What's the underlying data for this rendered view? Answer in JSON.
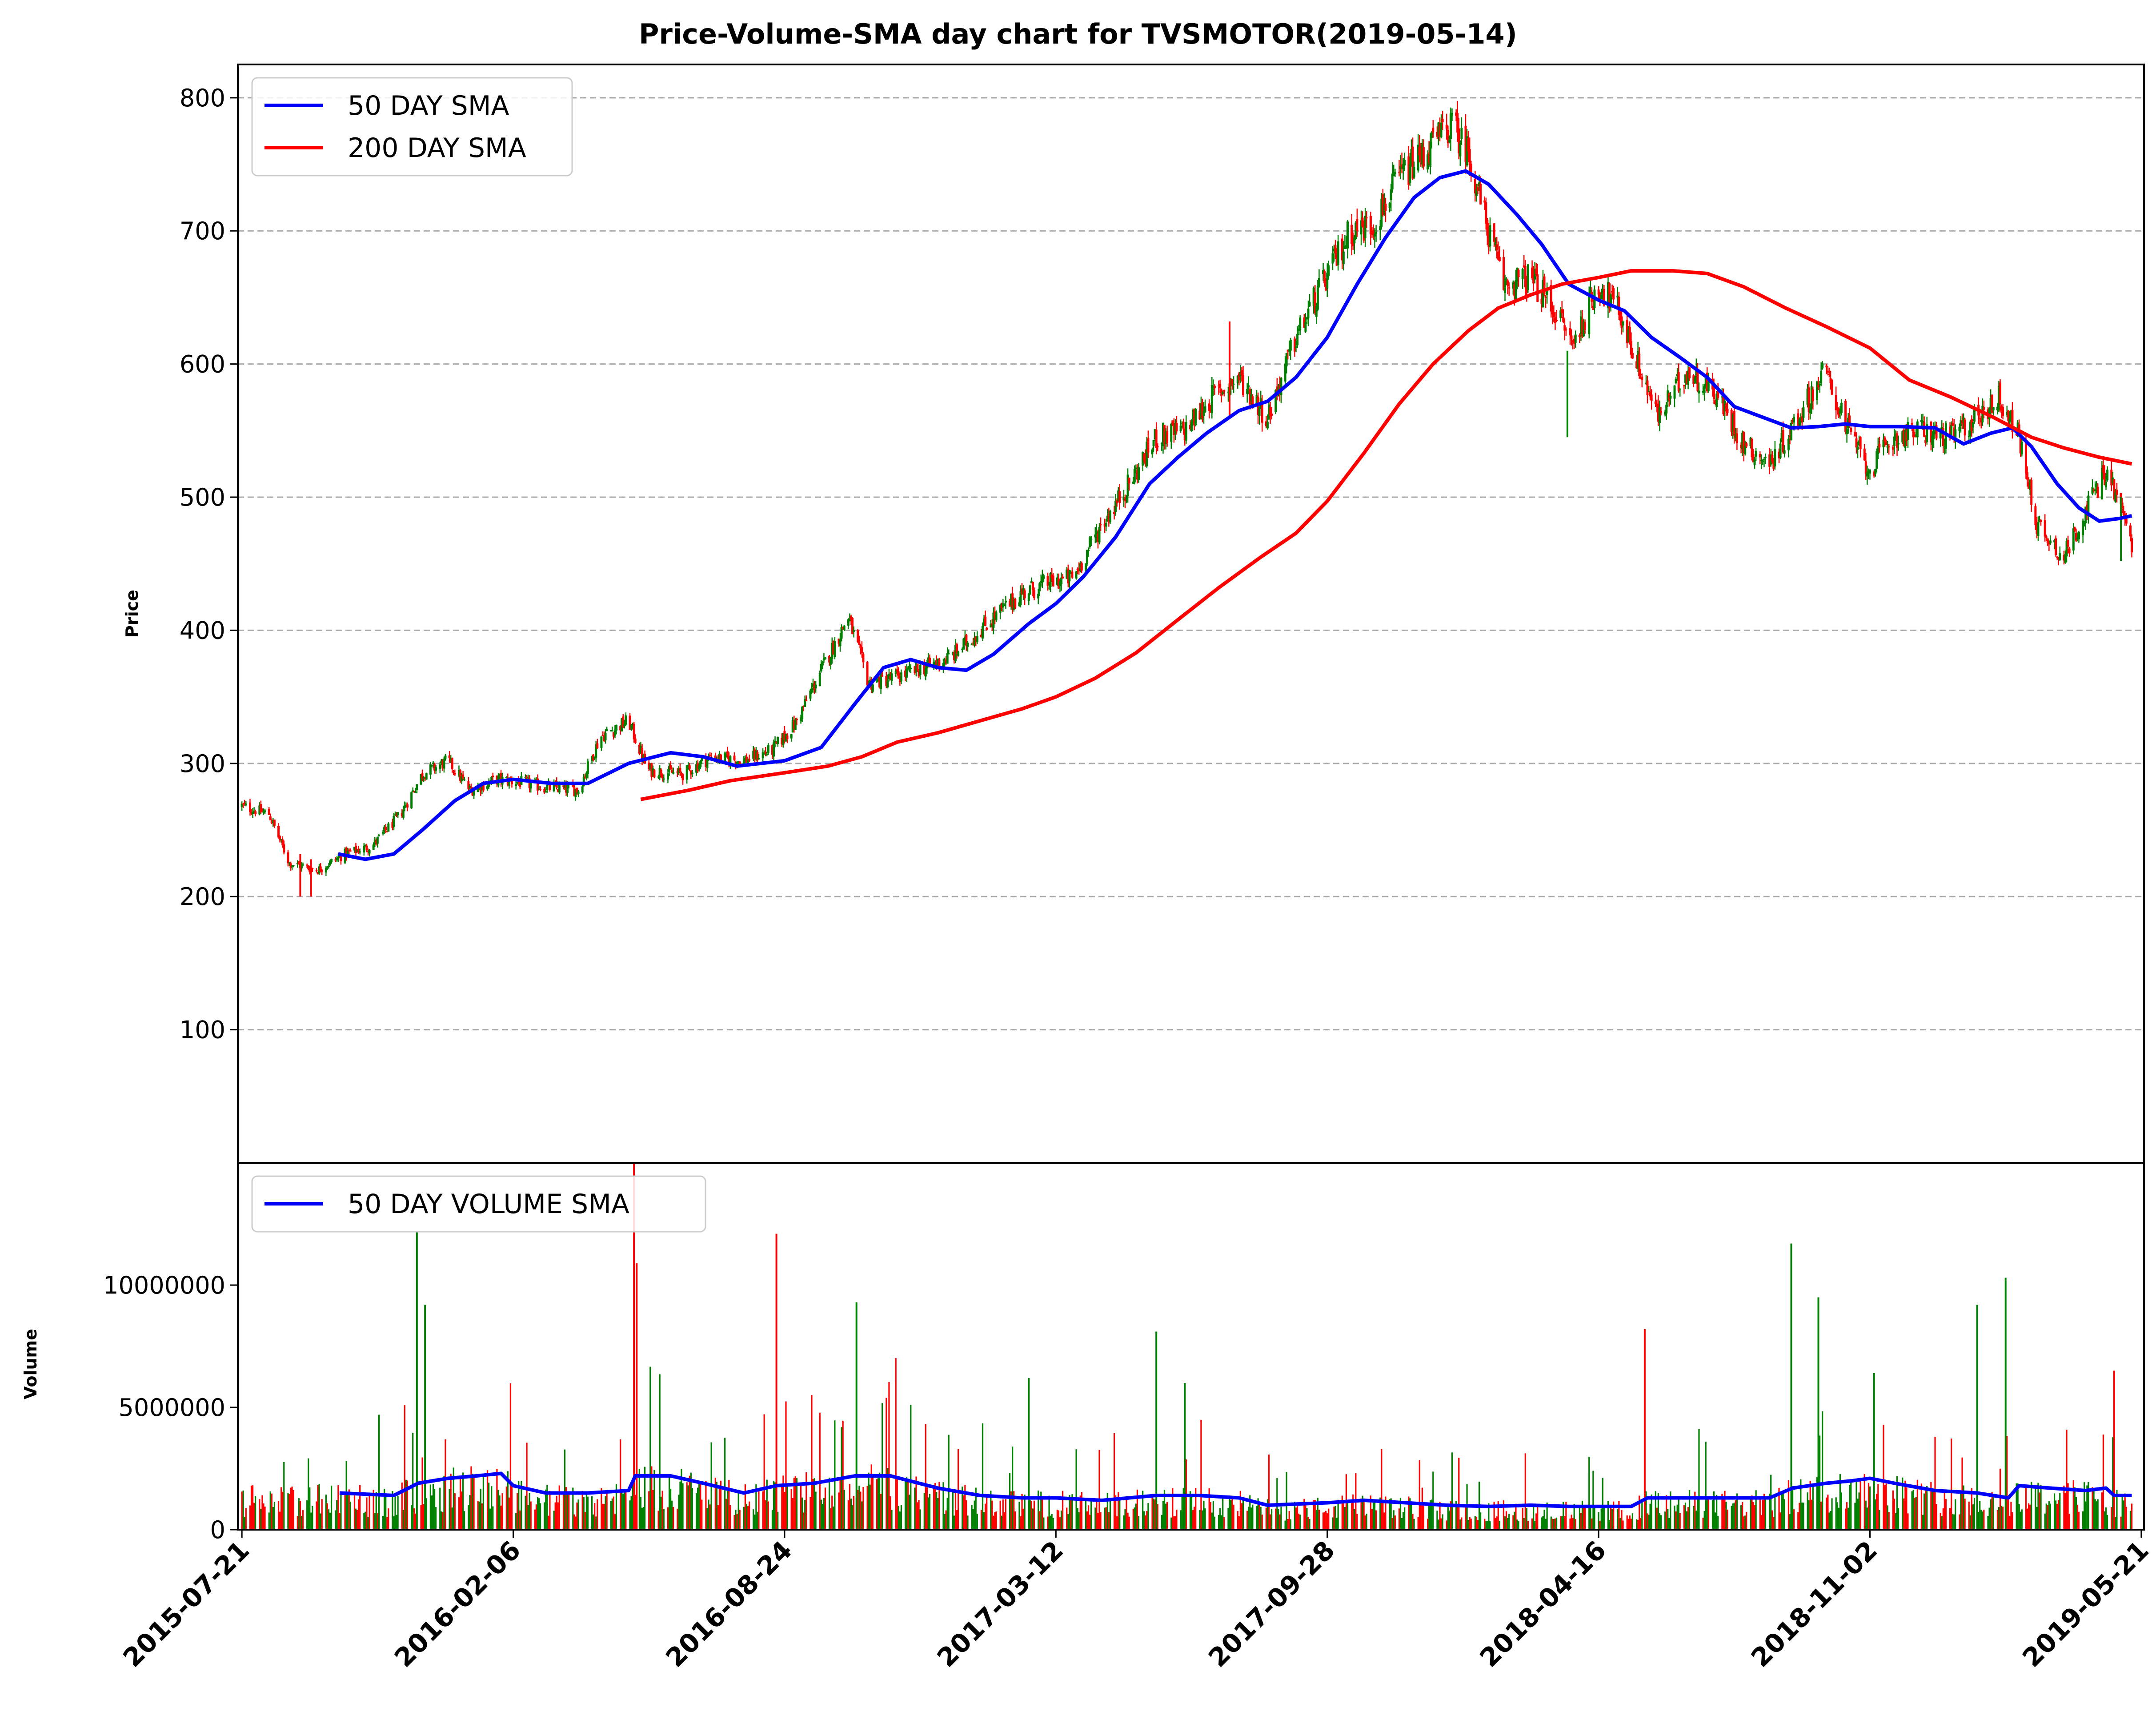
{
  "chart_data": {
    "type": "candlestick-volume",
    "title": "Price-Volume-SMA day chart for TVSMOTOR(2019-05-14)",
    "price_panel": {
      "ylabel": "Price",
      "ylim": [
        0,
        825
      ],
      "yticks": [
        100,
        200,
        300,
        400,
        500,
        600,
        700,
        800
      ],
      "grid": "horizontal dashed",
      "legend_position": "top-left",
      "up_color": "#008000",
      "down_color": "#ff0000",
      "close_keypoints": [
        [
          "2015-07-21",
          268
        ],
        [
          "2015-08-10",
          262
        ],
        [
          "2015-08-25",
          225
        ],
        [
          "2015-09-15",
          220
        ],
        [
          "2015-10-05",
          232
        ],
        [
          "2015-10-25",
          238
        ],
        [
          "2015-11-15",
          262
        ],
        [
          "2015-12-01",
          292
        ],
        [
          "2015-12-20",
          302
        ],
        [
          "2016-01-05",
          280
        ],
        [
          "2016-01-25",
          288
        ],
        [
          "2016-02-10",
          286
        ],
        [
          "2016-03-01",
          282
        ],
        [
          "2016-03-25",
          280
        ],
        [
          "2016-04-10",
          320
        ],
        [
          "2016-05-01",
          332
        ],
        [
          "2016-05-15",
          295
        ],
        [
          "2016-06-10",
          292
        ],
        [
          "2016-07-01",
          305
        ],
        [
          "2016-07-25",
          302
        ],
        [
          "2016-08-15",
          310
        ],
        [
          "2016-09-01",
          330
        ],
        [
          "2016-09-20",
          370
        ],
        [
          "2016-10-10",
          410
        ],
        [
          "2016-10-25",
          360
        ],
        [
          "2016-11-15",
          365
        ],
        [
          "2016-12-05",
          372
        ],
        [
          "2016-12-25",
          380
        ],
        [
          "2017-01-20",
          405
        ],
        [
          "2017-02-15",
          428
        ],
        [
          "2017-03-05",
          435
        ],
        [
          "2017-03-25",
          440
        ],
        [
          "2017-04-15",
          480
        ],
        [
          "2017-05-05",
          510
        ],
        [
          "2017-05-25",
          545
        ],
        [
          "2017-06-15",
          550
        ],
        [
          "2017-07-05",
          575
        ],
        [
          "2017-07-25",
          590
        ],
        [
          "2017-08-15",
          560
        ],
        [
          "2017-09-05",
          620
        ],
        [
          "2017-09-25",
          660
        ],
        [
          "2017-10-15",
          700
        ],
        [
          "2017-11-01",
          705
        ],
        [
          "2017-11-20",
          740
        ],
        [
          "2017-12-10",
          760
        ],
        [
          "2017-12-28",
          780
        ],
        [
          "2018-01-10",
          760
        ],
        [
          "2018-01-22",
          710
        ],
        [
          "2018-02-05",
          660
        ],
        [
          "2018-02-25",
          665
        ],
        [
          "2018-03-15",
          640
        ],
        [
          "2018-03-28",
          615
        ],
        [
          "2018-04-16",
          660
        ],
        [
          "2018-05-01",
          640
        ],
        [
          "2018-05-15",
          600
        ],
        [
          "2018-05-30",
          560
        ],
        [
          "2018-06-20",
          595
        ],
        [
          "2018-07-10",
          580
        ],
        [
          "2018-08-01",
          540
        ],
        [
          "2018-08-20",
          525
        ],
        [
          "2018-09-10",
          560
        ],
        [
          "2018-09-30",
          595
        ],
        [
          "2018-10-15",
          555
        ],
        [
          "2018-11-01",
          520
        ],
        [
          "2018-11-20",
          545
        ],
        [
          "2018-12-10",
          550
        ],
        [
          "2019-01-01",
          545
        ],
        [
          "2019-01-20",
          560
        ],
        [
          "2019-02-05",
          575
        ],
        [
          "2019-02-20",
          545
        ],
        [
          "2019-03-05",
          480
        ],
        [
          "2019-03-25",
          455
        ],
        [
          "2019-04-10",
          490
        ],
        [
          "2019-04-25",
          520
        ],
        [
          "2019-05-05",
          495
        ],
        [
          "2019-05-14",
          465
        ]
      ],
      "series": [
        {
          "name": "50 DAY SMA",
          "color": "#0000ff",
          "points": [
            [
              "2015-09-30",
              232
            ],
            [
              "2015-10-20",
              228
            ],
            [
              "2015-11-10",
              232
            ],
            [
              "2015-12-01",
              250
            ],
            [
              "2015-12-25",
              272
            ],
            [
              "2016-01-15",
              285
            ],
            [
              "2016-02-06",
              288
            ],
            [
              "2016-03-05",
              285
            ],
            [
              "2016-04-01",
              285
            ],
            [
              "2016-05-01",
              300
            ],
            [
              "2016-06-01",
              308
            ],
            [
              "2016-06-25",
              305
            ],
            [
              "2016-07-20",
              298
            ],
            [
              "2016-08-24",
              302
            ],
            [
              "2016-09-20",
              312
            ],
            [
              "2016-10-15",
              345
            ],
            [
              "2016-11-05",
              372
            ],
            [
              "2016-11-25",
              378
            ],
            [
              "2016-12-15",
              372
            ],
            [
              "2017-01-05",
              370
            ],
            [
              "2017-01-25",
              382
            ],
            [
              "2017-02-20",
              405
            ],
            [
              "2017-03-12",
              420
            ],
            [
              "2017-04-01",
              440
            ],
            [
              "2017-04-25",
              470
            ],
            [
              "2017-05-20",
              510
            ],
            [
              "2017-06-10",
              530
            ],
            [
              "2017-07-01",
              548
            ],
            [
              "2017-07-25",
              565
            ],
            [
              "2017-08-15",
              572
            ],
            [
              "2017-09-05",
              590
            ],
            [
              "2017-09-28",
              620
            ],
            [
              "2017-10-20",
              660
            ],
            [
              "2017-11-10",
              695
            ],
            [
              "2017-12-01",
              725
            ],
            [
              "2017-12-20",
              740
            ],
            [
              "2018-01-08",
              745
            ],
            [
              "2018-01-25",
              735
            ],
            [
              "2018-02-15",
              712
            ],
            [
              "2018-03-05",
              690
            ],
            [
              "2018-03-25",
              660
            ],
            [
              "2018-04-16",
              648
            ],
            [
              "2018-05-05",
              640
            ],
            [
              "2018-05-25",
              620
            ],
            [
              "2018-06-15",
              605
            ],
            [
              "2018-07-05",
              590
            ],
            [
              "2018-07-25",
              568
            ],
            [
              "2018-08-15",
              560
            ],
            [
              "2018-09-05",
              552
            ],
            [
              "2018-09-25",
              553
            ],
            [
              "2018-10-15",
              555
            ],
            [
              "2018-11-02",
              553
            ],
            [
              "2018-11-25",
              553
            ],
            [
              "2018-12-20",
              552
            ],
            [
              "2019-01-10",
              540
            ],
            [
              "2019-01-30",
              548
            ],
            [
              "2019-02-15",
              552
            ],
            [
              "2019-03-01",
              538
            ],
            [
              "2019-03-20",
              510
            ],
            [
              "2019-04-05",
              492
            ],
            [
              "2019-04-20",
              482
            ],
            [
              "2019-05-05",
              484
            ],
            [
              "2019-05-14",
              486
            ]
          ]
        },
        {
          "name": "200 DAY SMA",
          "color": "#ff0000",
          "points": [
            [
              "2016-05-10",
              273
            ],
            [
              "2016-06-15",
              280
            ],
            [
              "2016-07-15",
              287
            ],
            [
              "2016-08-24",
              293
            ],
            [
              "2016-09-25",
              298
            ],
            [
              "2016-10-20",
              305
            ],
            [
              "2016-11-15",
              316
            ],
            [
              "2016-12-15",
              323
            ],
            [
              "2017-01-15",
              332
            ],
            [
              "2017-02-15",
              341
            ],
            [
              "2017-03-12",
              350
            ],
            [
              "2017-04-10",
              364
            ],
            [
              "2017-05-10",
              383
            ],
            [
              "2017-06-10",
              408
            ],
            [
              "2017-07-10",
              432
            ],
            [
              "2017-08-10",
              455
            ],
            [
              "2017-09-05",
              473
            ],
            [
              "2017-09-28",
              497
            ],
            [
              "2017-10-25",
              533
            ],
            [
              "2017-11-20",
              570
            ],
            [
              "2017-12-15",
              600
            ],
            [
              "2018-01-10",
              625
            ],
            [
              "2018-02-01",
              642
            ],
            [
              "2018-02-25",
              652
            ],
            [
              "2018-03-20",
              660
            ],
            [
              "2018-04-16",
              665
            ],
            [
              "2018-05-10",
              670
            ],
            [
              "2018-06-10",
              670
            ],
            [
              "2018-07-05",
              668
            ],
            [
              "2018-08-01",
              658
            ],
            [
              "2018-09-01",
              642
            ],
            [
              "2018-10-01",
              628
            ],
            [
              "2018-11-02",
              612
            ],
            [
              "2018-12-01",
              588
            ],
            [
              "2019-01-01",
              575
            ],
            [
              "2019-02-01",
              560
            ],
            [
              "2019-03-01",
              545
            ],
            [
              "2019-03-25",
              537
            ],
            [
              "2019-04-20",
              530
            ],
            [
              "2019-05-14",
              525
            ]
          ]
        }
      ]
    },
    "volume_panel": {
      "ylabel": "Volume",
      "ylim": [
        0,
        15000000
      ],
      "yticks": [
        0,
        5000000,
        10000000
      ],
      "legend_position": "top-left",
      "spikes": [
        [
          "2015-10-30",
          4700000,
          "up"
        ],
        [
          "2015-11-27",
          12200000,
          "up"
        ],
        [
          "2015-12-03",
          9200000,
          "up"
        ],
        [
          "2016-05-05",
          15000000,
          "down"
        ],
        [
          "2016-05-07",
          10900000,
          "down"
        ],
        [
          "2016-08-18",
          12100000,
          "down"
        ],
        [
          "2016-10-16",
          9300000,
          "up"
        ],
        [
          "2017-02-20",
          6200000,
          "up"
        ],
        [
          "2017-05-25",
          8100000,
          "up"
        ],
        [
          "2017-06-15",
          6000000,
          "up"
        ],
        [
          "2018-05-20",
          8200000,
          "down"
        ],
        [
          "2018-09-05",
          11700000,
          "up"
        ],
        [
          "2018-09-25",
          9500000,
          "up"
        ],
        [
          "2018-11-05",
          6400000,
          "up"
        ],
        [
          "2019-01-20",
          9200000,
          "up"
        ],
        [
          "2019-02-10",
          10300000,
          "up"
        ],
        [
          "2019-05-01",
          6500000,
          "down"
        ]
      ],
      "series": [
        {
          "name": "50 DAY VOLUME SMA",
          "color": "#0000ff",
          "points": [
            [
              "2015-10-01",
              1500000
            ],
            [
              "2015-11-10",
              1400000
            ],
            [
              "2015-11-28",
              1900000
            ],
            [
              "2015-12-20",
              2100000
            ],
            [
              "2016-01-10",
              2200000
            ],
            [
              "2016-01-28",
              2300000
            ],
            [
              "2016-02-06",
              1800000
            ],
            [
              "2016-03-01",
              1500000
            ],
            [
              "2016-04-01",
              1500000
            ],
            [
              "2016-05-01",
              1600000
            ],
            [
              "2016-05-06",
              2200000
            ],
            [
              "2016-06-01",
              2200000
            ],
            [
              "2016-06-25",
              1900000
            ],
            [
              "2016-07-25",
              1500000
            ],
            [
              "2016-08-18",
              1800000
            ],
            [
              "2016-09-15",
              1900000
            ],
            [
              "2016-10-15",
              2200000
            ],
            [
              "2016-11-10",
              2200000
            ],
            [
              "2016-12-15",
              1700000
            ],
            [
              "2017-01-15",
              1400000
            ],
            [
              "2017-02-15",
              1300000
            ],
            [
              "2017-03-12",
              1300000
            ],
            [
              "2017-04-15",
              1200000
            ],
            [
              "2017-05-25",
              1400000
            ],
            [
              "2017-06-25",
              1400000
            ],
            [
              "2017-07-25",
              1300000
            ],
            [
              "2017-08-15",
              1000000
            ],
            [
              "2017-09-28",
              1100000
            ],
            [
              "2017-10-25",
              1200000
            ],
            [
              "2017-11-25",
              1100000
            ],
            [
              "2017-12-25",
              1000000
            ],
            [
              "2018-01-25",
              950000
            ],
            [
              "2018-02-25",
              1000000
            ],
            [
              "2018-03-25",
              950000
            ],
            [
              "2018-04-16",
              950000
            ],
            [
              "2018-05-10",
              950000
            ],
            [
              "2018-05-22",
              1300000
            ],
            [
              "2018-06-20",
              1300000
            ],
            [
              "2018-07-25",
              1300000
            ],
            [
              "2018-08-20",
              1300000
            ],
            [
              "2018-09-06",
              1700000
            ],
            [
              "2018-10-01",
              1900000
            ],
            [
              "2018-10-20",
              2000000
            ],
            [
              "2018-11-02",
              2100000
            ],
            [
              "2018-11-20",
              1900000
            ],
            [
              "2018-12-20",
              1600000
            ],
            [
              "2019-01-20",
              1500000
            ],
            [
              "2019-02-12",
              1300000
            ],
            [
              "2019-02-20",
              1800000
            ],
            [
              "2019-03-15",
              1700000
            ],
            [
              "2019-04-10",
              1600000
            ],
            [
              "2019-04-25",
              1700000
            ],
            [
              "2019-05-01",
              1400000
            ],
            [
              "2019-05-14",
              1400000
            ]
          ]
        }
      ]
    },
    "xaxis": {
      "start": "2015-07-18",
      "end": "2019-05-23",
      "ticks": [
        "2015-07-21",
        "2016-02-06",
        "2016-08-24",
        "2017-03-12",
        "2017-09-28",
        "2018-04-16",
        "2018-11-02",
        "2019-05-21"
      ]
    }
  }
}
